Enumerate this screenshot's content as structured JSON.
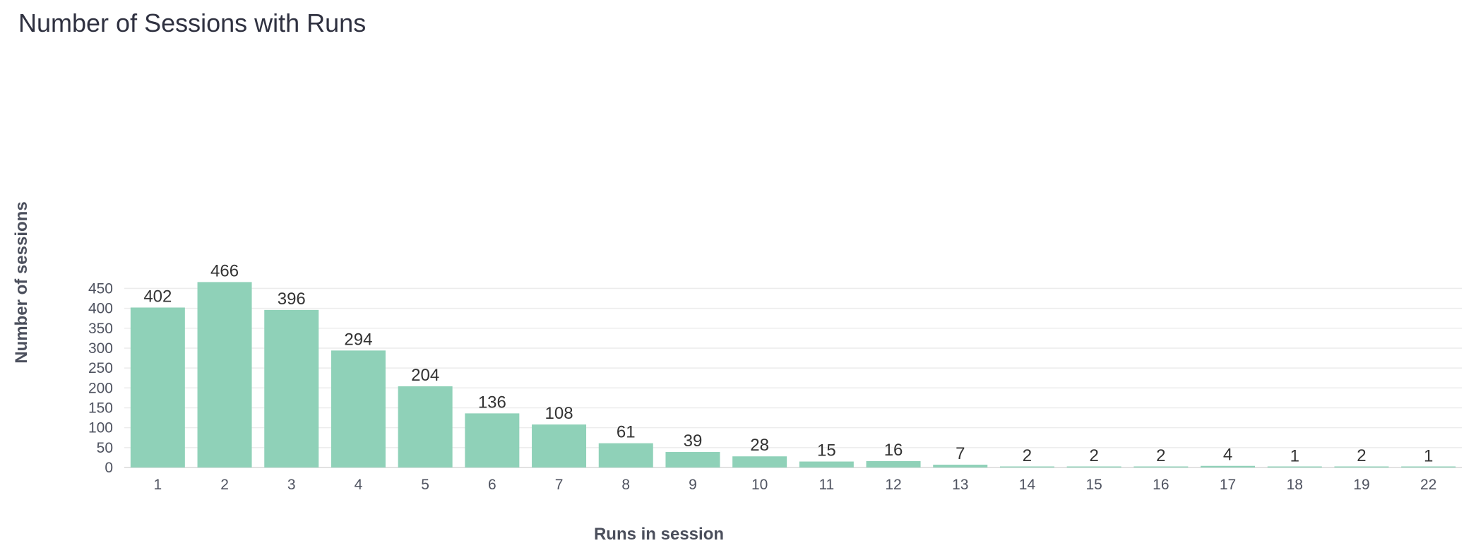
{
  "chart_data": {
    "type": "bar",
    "title": "Number of Sessions with Runs",
    "xlabel": "Runs in session",
    "ylabel": "Number of sessions",
    "categories": [
      "1",
      "2",
      "3",
      "4",
      "5",
      "6",
      "7",
      "8",
      "9",
      "10",
      "11",
      "12",
      "13",
      "14",
      "15",
      "16",
      "17",
      "18",
      "19",
      "22"
    ],
    "values": [
      402,
      466,
      396,
      294,
      204,
      136,
      108,
      61,
      39,
      28,
      15,
      16,
      7,
      2,
      2,
      2,
      4,
      1,
      2,
      1
    ],
    "data_labels": [
      "402",
      "466",
      "396",
      "294",
      "204",
      "136",
      "108",
      "61",
      "39",
      "28",
      "15",
      "16",
      "7",
      "2",
      "2",
      "2",
      "4",
      "1",
      "2",
      "1"
    ],
    "yticks": [
      0,
      50,
      100,
      150,
      200,
      250,
      300,
      350,
      400,
      450
    ],
    "ylim": [
      0,
      500
    ],
    "grid": true,
    "legend": "none",
    "colors": {
      "bar": "#8fd1b8",
      "grid": "#ececec",
      "text": "#333333",
      "axis_text": "#4f5360",
      "title": "#2f3140"
    }
  }
}
